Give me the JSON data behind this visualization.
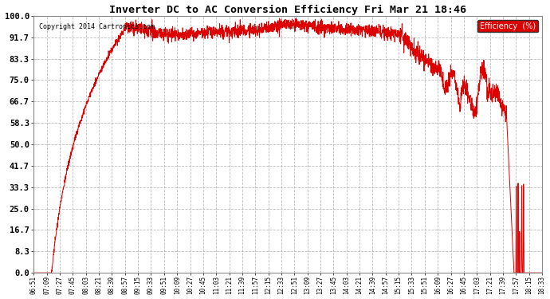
{
  "title": "Inverter DC to AC Conversion Efficiency Fri Mar 21 18:46",
  "copyright": "Copyright 2014 Cartronics.com",
  "legend_label": "Efficiency  (%)",
  "legend_bg": "#dd0000",
  "line_color": "#dd0000",
  "bg_color": "#ffffff",
  "plot_bg_color": "#ffffff",
  "grid_color": "#bbbbbb",
  "ylim": [
    0.0,
    100.0
  ],
  "yticks": [
    0.0,
    8.3,
    16.7,
    25.0,
    33.3,
    41.7,
    50.0,
    58.3,
    66.7,
    75.0,
    83.3,
    91.7,
    100.0
  ],
  "ytick_labels": [
    "0.0",
    "8.3",
    "16.7",
    "25.0",
    "33.3",
    "41.7",
    "50.0",
    "58.3",
    "66.7",
    "75.0",
    "83.3",
    "91.7",
    "100.0"
  ],
  "xtick_labels": [
    "06:51",
    "07:09",
    "07:27",
    "07:45",
    "08:03",
    "08:21",
    "08:39",
    "08:57",
    "09:15",
    "09:33",
    "09:51",
    "10:09",
    "10:27",
    "10:45",
    "11:03",
    "11:21",
    "11:39",
    "11:57",
    "12:15",
    "12:33",
    "12:51",
    "13:09",
    "13:27",
    "13:45",
    "14:03",
    "14:21",
    "14:39",
    "14:57",
    "15:15",
    "15:33",
    "15:51",
    "16:09",
    "16:27",
    "16:45",
    "17:03",
    "17:21",
    "17:39",
    "17:57",
    "18:15",
    "18:33"
  ]
}
